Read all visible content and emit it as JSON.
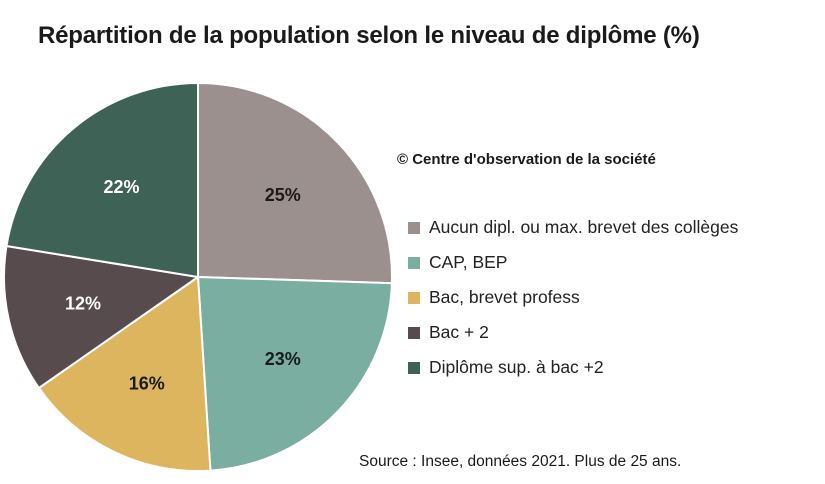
{
  "title": "Répartition de la population selon le niveau de diplôme (%)",
  "copyright": "© Centre d'observation de la  société",
  "source": "Source : Insee, données 2021. Plus de 25 ans.",
  "chart_data": {
    "type": "pie",
    "title": "Répartition de la population selon le niveau de diplôme (%)",
    "unit": "%",
    "legend_position": "right",
    "slices": [
      {
        "label": "Aucun dipl. ou max. brevet des collèges",
        "value": 25,
        "display": "25%",
        "color": "#9c908f",
        "label_color": "#1a1a1a"
      },
      {
        "label": "CAP, BEP",
        "value": 23,
        "display": "23%",
        "color": "#7aaea1",
        "label_color": "#1a1a1a"
      },
      {
        "label": "Bac, brevet profess",
        "value": 16,
        "display": "16%",
        "color": "#deb55f",
        "label_color": "#1a1a1a"
      },
      {
        "label": "Bac + 2",
        "value": 12,
        "display": "12%",
        "color": "#574b4d",
        "label_color": "#ffffff"
      },
      {
        "label": "Diplôme sup. à bac +2",
        "value": 22,
        "display": "22%",
        "color": "#3f6257",
        "label_color": "#ffffff"
      }
    ]
  }
}
